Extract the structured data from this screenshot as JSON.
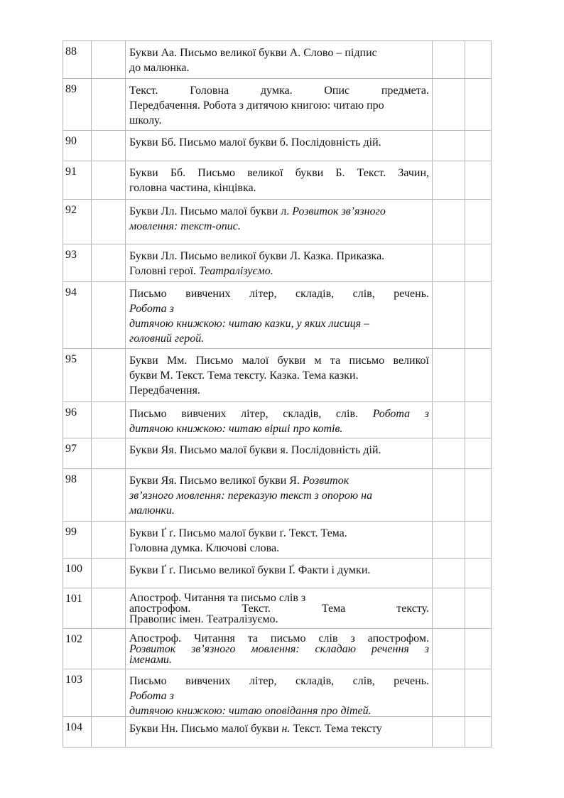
{
  "table": {
    "rows": [
      {
        "num": "88",
        "lines": [
          [
            {
              "t": "Букви Аа. Письмо великої букви А. Слово – підпис"
            }
          ],
          [
            {
              "t": "до малюнка."
            }
          ]
        ]
      },
      {
        "num": "89",
        "lines": [
          [
            {
              "t": "Текст. Головна думка. Опис предмета."
            }
          ],
          [
            {
              "t": "Передбачення. Робота з дитячою книгою: читаю про"
            }
          ],
          [
            {
              "t": "школу."
            }
          ]
        ]
      },
      {
        "num": "90",
        "lines": [
          [
            {
              "t": "Букви Бб. Письмо малої букви б. Послідовність дій."
            }
          ]
        ]
      },
      {
        "num": "91",
        "lines": [
          [
            {
              "t": "Букви Бб. Письмо великої букви Б. Текст. Зачин,"
            }
          ],
          [
            {
              "t": "головна частина, кінцівка."
            }
          ]
        ]
      },
      {
        "num": "92",
        "lines": [
          [
            {
              "t": "Букви Лл. Письмо малої букви л. "
            },
            {
              "t": "Розвиток зв’язного",
              "i": true
            }
          ],
          [
            {
              "t": "мовлення: текст-опис.",
              "i": true
            }
          ]
        ]
      },
      {
        "num": "93",
        "lines": [
          [
            {
              "t": "Букви Лл. Письмо великої букви Л. Казка. Приказка."
            }
          ],
          [
            {
              "t": "Головні герої. "
            },
            {
              "t": "Театралізуємо.",
              "i": true
            }
          ]
        ]
      },
      {
        "num": "94",
        "lines": [
          [
            {
              "t": "Письмо вивчених літер, складів, слів, речень."
            }
          ],
          [
            {
              "t": "Робота з",
              "i": true
            }
          ],
          [
            {
              "t": "дитячою книжкою: читаю казки, у яких лисиця –",
              "i": true
            }
          ],
          [
            {
              "t": "головний герой.",
              "i": true
            }
          ]
        ]
      },
      {
        "num": "95",
        "lines": [
          [
            {
              "t": "Букви Мм. Письмо малої букви м та письмо великої"
            }
          ],
          [
            {
              "t": "букви М. Текст. Тема тексту. Казка. Тема казки."
            }
          ],
          [
            {
              "t": "Передбачення."
            }
          ]
        ]
      },
      {
        "num": "96",
        "lines": [
          [
            {
              "t": "Письмо вивчених літер, складів, слів.  "
            },
            {
              "t": "Робота з",
              "i": true
            }
          ],
          [
            {
              "t": "дитячою книжкою: читаю вірші про котів.",
              "i": true
            }
          ]
        ]
      },
      {
        "num": "97",
        "lines": [
          [
            {
              "t": "Букви Яя. Письмо малої букви я. Послідовність дій."
            }
          ]
        ]
      },
      {
        "num": "98",
        "lines": [
          [
            {
              "t": "Букви Яя. Письмо великої букви Я. "
            },
            {
              "t": "Розвиток",
              "i": true
            }
          ],
          [
            {
              "t": "зв’язного мовлення: переказую текст з опорою на",
              "i": true
            }
          ],
          [
            {
              "t": "малюнки.",
              "i": true
            }
          ]
        ]
      },
      {
        "num": "99",
        "lines": [
          [
            {
              "t": "Букви Ґ ґ. Письмо малої букви ґ. Текст. Тема."
            }
          ],
          [
            {
              "t": "Головна думка. Ключові слова."
            }
          ]
        ]
      },
      {
        "num": "100",
        "lines": [
          [
            {
              "t": "Букви Ґ ґ. Письмо великої букви Ґ. Факти і думки."
            }
          ]
        ]
      },
      {
        "num": "101",
        "lines": [
          [
            {
              "t": "Апостроф. Читання та письмо слів з"
            }
          ],
          [
            {
              "t": "апострофом. Текст. Тема тексту."
            }
          ],
          [
            {
              "t": "Правопис імен. Театралізуємо."
            }
          ]
        ]
      },
      {
        "num": "102",
        "lines": [
          [
            {
              "t": "Апостроф. Читання та письмо слів з апострофом."
            }
          ],
          [
            {
              "t": "Розвиток зв’язного мовлення: складаю речення з",
              "i": true
            }
          ],
          [
            {
              "t": "іменами.",
              "i": true
            }
          ]
        ]
      },
      {
        "num": "103",
        "lines": [
          [
            {
              "t": "Письмо вивчених літер, складів, слів, речень."
            }
          ],
          [
            {
              "t": "Робота з",
              "i": true
            }
          ],
          [
            {
              "t": "дитячою книжкою: читаю оповідання про дітей.",
              "i": true
            }
          ]
        ]
      },
      {
        "num": "104",
        "lines": [
          [
            {
              "t": "Букви Нн. Письмо малої букви "
            },
            {
              "t": "н.",
              "i": true
            },
            {
              "t": " Текст. Тема тексту"
            }
          ]
        ]
      }
    ]
  }
}
